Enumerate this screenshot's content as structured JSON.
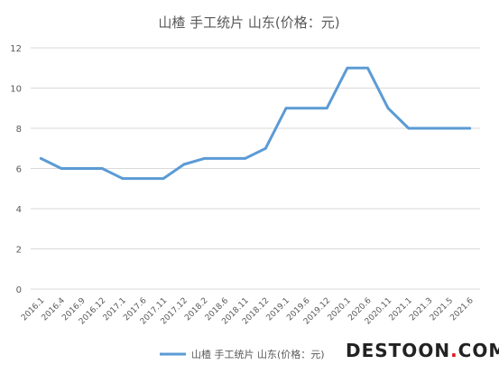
{
  "chart_data": {
    "type": "line",
    "title": "山楂 手工统片 山东(价格：元)",
    "categories": [
      "2016.1",
      "2016.4",
      "2016.9",
      "2016.12",
      "2017.1",
      "2017.6",
      "2017.11",
      "2017.12",
      "2018.2",
      "2018.6",
      "2018.11",
      "2018.12",
      "2019.1",
      "2019.6",
      "2019.12",
      "2020.1",
      "2020.6",
      "2020.11",
      "2021.1",
      "2021.3",
      "2021.5",
      "2021.6"
    ],
    "series": [
      {
        "name": "山楂 手工统片 山东(价格：元)",
        "values": [
          6.5,
          6,
          6,
          6,
          5.5,
          5.5,
          5.5,
          6.2,
          6.5,
          6.5,
          6.5,
          7,
          9,
          9,
          9,
          11,
          11,
          9,
          8,
          8,
          8,
          8
        ]
      }
    ],
    "yticks": [
      "0",
      "2",
      "4",
      "6",
      "8",
      "10",
      "12"
    ],
    "ylim": [
      0,
      12
    ],
    "grid": true,
    "legend_position": "bottom-center"
  },
  "watermark": {
    "main": "DESTOON",
    "accent": ".",
    "tail": "COM"
  },
  "colors": {
    "series": "#5b9bd5",
    "grid": "#d9d9d9",
    "text": "#595959",
    "watermark_accent": "#e3141f"
  }
}
